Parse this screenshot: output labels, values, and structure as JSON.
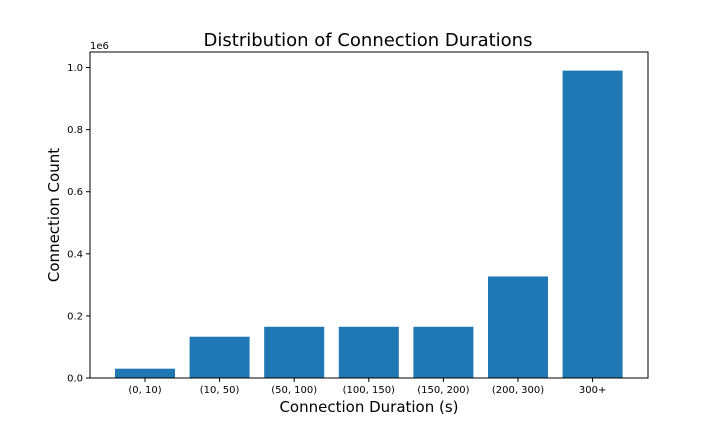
{
  "chart_data": {
    "type": "bar",
    "title": "Distribution of Connection Durations",
    "xlabel": "Connection Duration (s)",
    "ylabel": "Connection Count",
    "y_offset_label": "1e6",
    "categories": [
      "(0, 10)",
      "(10, 50)",
      "(50, 100)",
      "(100, 150)",
      "(150, 200)",
      "(200, 300)",
      "300+"
    ],
    "values": [
      30000,
      133000,
      165000,
      165000,
      165000,
      327000,
      990000
    ],
    "ylim": [
      0,
      1050000
    ],
    "yticks": [
      0,
      200000,
      400000,
      600000,
      800000,
      1000000
    ],
    "ytick_labels": [
      "0.0",
      "0.2",
      "0.4",
      "0.6",
      "0.8",
      "1.0"
    ],
    "grid": false,
    "colors": {
      "bar": "#1f77b4",
      "axis": "#000000"
    }
  }
}
